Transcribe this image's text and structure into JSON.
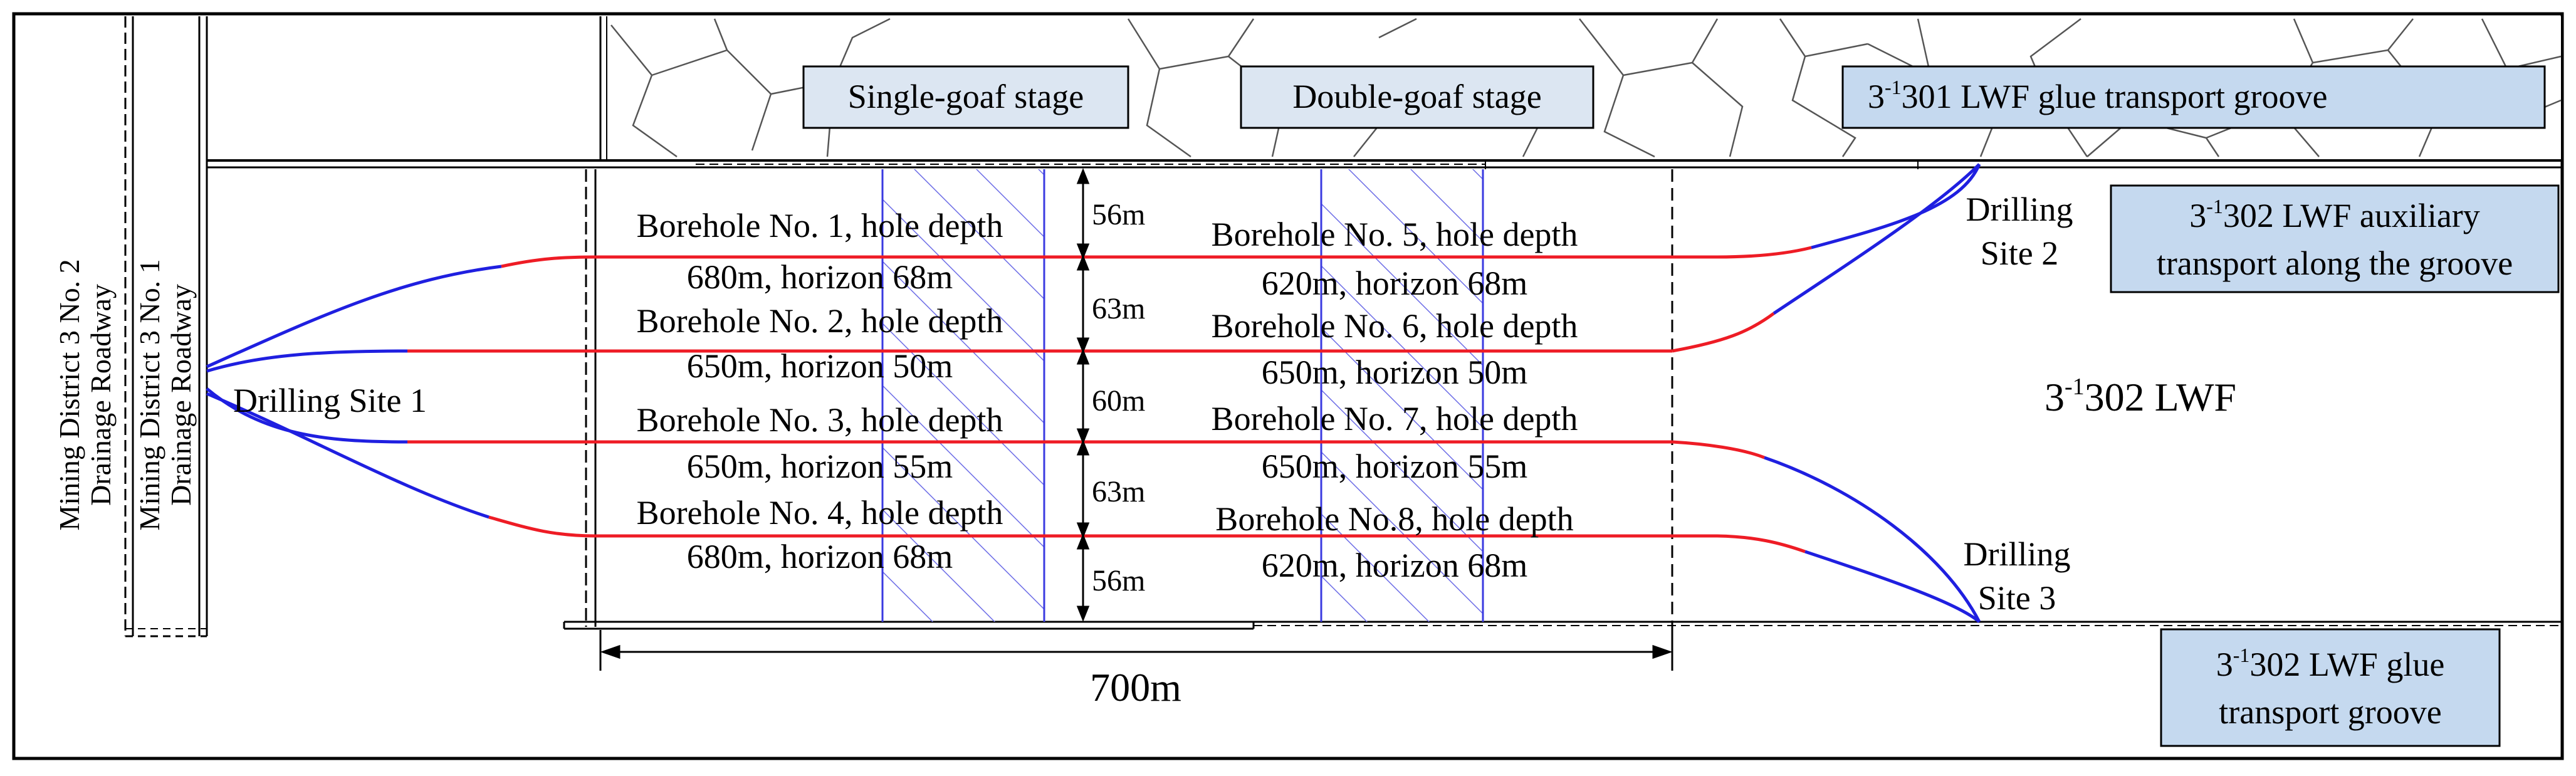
{
  "stages": {
    "single": "Single-goaf stage",
    "double": "Double-goaf stage"
  },
  "roadways": {
    "no2": [
      "Mining District 3 No. 2",
      "Drainage Roadway"
    ],
    "no1": [
      "Mining District 3 No. 1",
      "Drainage Roadway"
    ]
  },
  "lwf_1301_glue": {
    "pre": "3",
    "sup": "-1",
    "post": "301 LWF glue transport groove"
  },
  "lwf_1302_aux": {
    "line1_pre": "3",
    "line1_sup": "-1",
    "line1_post": "302 LWF auxiliary",
    "line2": "transport along the groove"
  },
  "lwf_1302_glue": {
    "line1_pre": "3",
    "line1_sup": "-1",
    "line1_post": "302 LWF glue",
    "line2": "transport groove"
  },
  "lwf_1302": {
    "pre": "3",
    "sup": "-1",
    "post": "302 LWF"
  },
  "sites": {
    "site1": "Drilling Site 1",
    "site2": [
      "Drilling",
      "Site 2"
    ],
    "site3": [
      "Drilling",
      "Site 3"
    ]
  },
  "boreholes_left": [
    [
      "Borehole No. 1, hole depth",
      "680m, horizon 68m"
    ],
    [
      "Borehole No. 2, hole depth",
      "650m, horizon 50m"
    ],
    [
      "Borehole No. 3, hole depth",
      "650m, horizon 55m"
    ],
    [
      "Borehole No. 4, hole depth",
      "680m, horizon 68m"
    ]
  ],
  "boreholes_right": [
    [
      "Borehole No. 5, hole depth",
      "620m, horizon 68m"
    ],
    [
      "Borehole No. 6, hole depth",
      "650m, horizon 50m"
    ],
    [
      "Borehole No. 7, hole depth",
      "650m, horizon 55m"
    ],
    [
      "Borehole No.8, hole depth",
      "620m, horizon 68m"
    ]
  ],
  "spacings": [
    "56m",
    "63m",
    "60m",
    "63m",
    "56m"
  ],
  "length": "700m",
  "colors": {
    "red": "#ee1c25",
    "blue": "#1f1fe0",
    "box_fill": "#dce6f2",
    "box_fill_right": "#c5d9ef",
    "hatch": "#6a6ae6"
  }
}
